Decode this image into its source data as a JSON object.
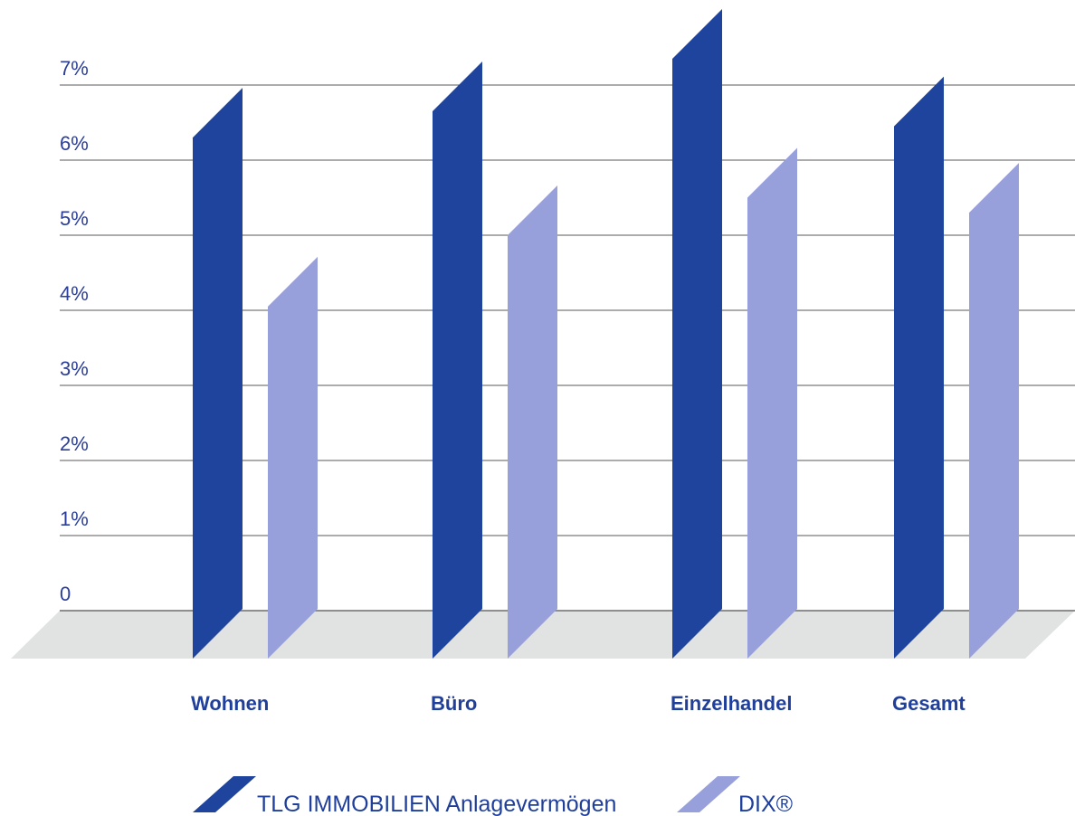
{
  "chart_data": {
    "type": "bar",
    "title": "",
    "xlabel": "",
    "ylabel": "",
    "ylim": [
      0,
      7
    ],
    "yticks": [
      {
        "value": 0,
        "label": "0"
      },
      {
        "value": 1,
        "label": "1%"
      },
      {
        "value": 2,
        "label": "2%"
      },
      {
        "value": 3,
        "label": "3%"
      },
      {
        "value": 4,
        "label": "4%"
      },
      {
        "value": 5,
        "label": "5%"
      },
      {
        "value": 6,
        "label": "6%"
      },
      {
        "value": 7,
        "label": "7%"
      }
    ],
    "categories": [
      "Wohnen",
      "Büro",
      "Einzelhandel",
      "Gesamt"
    ],
    "series": [
      {
        "name": "TLG IMMOBILIEN Anlagevermögen",
        "color": "#1f449d",
        "values": [
          6.3,
          6.65,
          7.35,
          6.45
        ]
      },
      {
        "name": "DIX®",
        "color": "#98a0db",
        "values": [
          4.05,
          5.0,
          5.5,
          5.3
        ]
      }
    ],
    "grid": true,
    "legend_position": "bottom"
  },
  "floor_color": "#e1e2e2"
}
